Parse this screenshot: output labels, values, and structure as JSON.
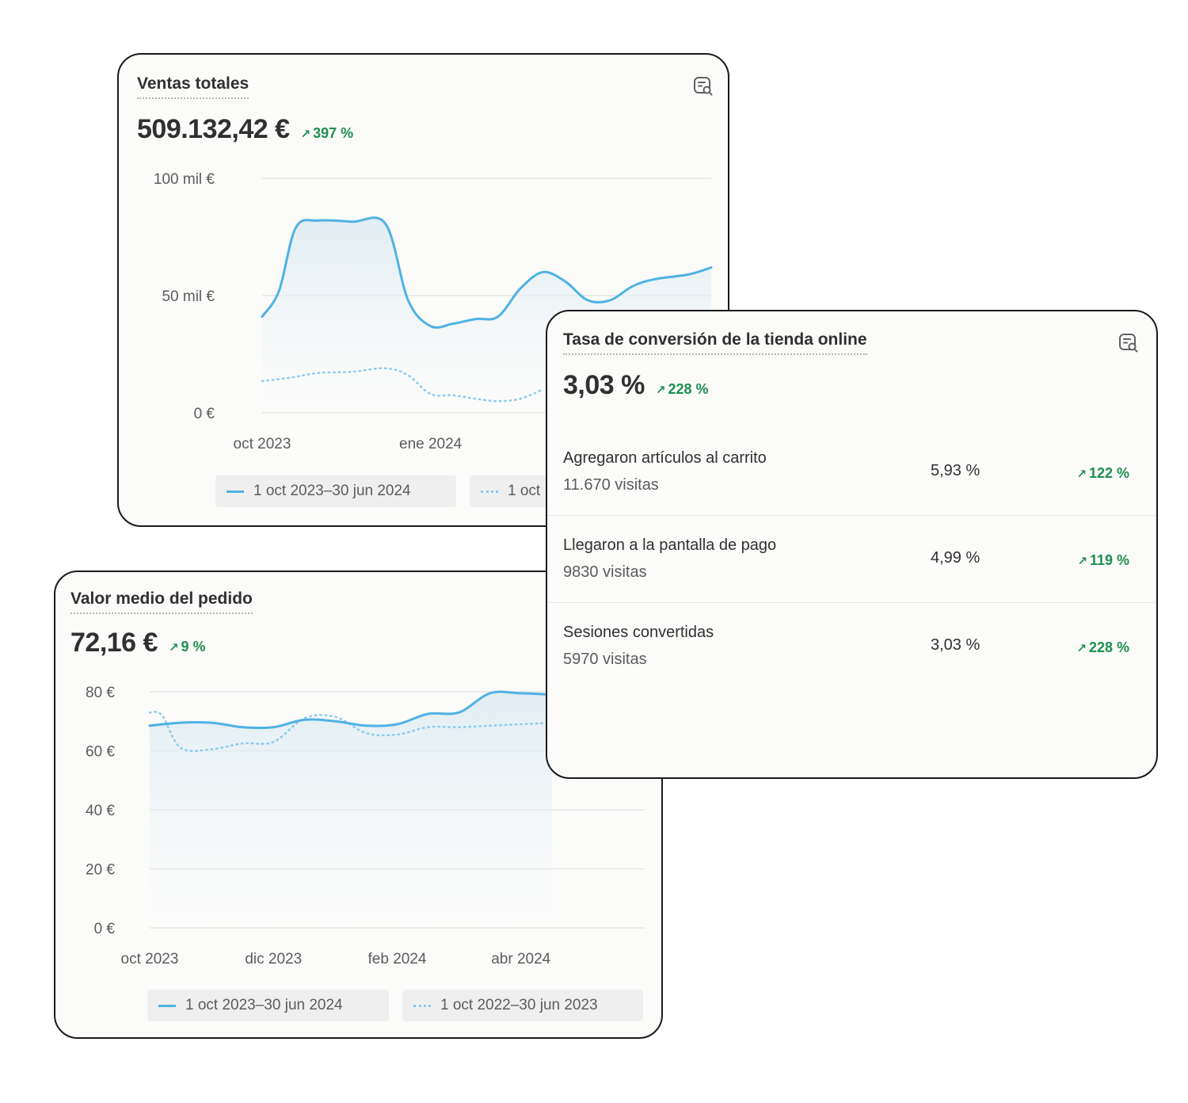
{
  "sales_card": {
    "title": "Ventas totales",
    "value": "509.132,42 €",
    "change": "397 %",
    "change_icon": "arrow-up-right-icon",
    "report_icon": "report-search-icon",
    "legend": [
      "1 oct 2023–30 jun 2024",
      "1 oct"
    ]
  },
  "conversion_card": {
    "title": "Tasa de conversión de la tienda online",
    "value": "3,03 %",
    "change": "228 %",
    "report_icon": "report-search-icon",
    "rows": [
      {
        "label": "Agregaron artículos al carrito",
        "sub": "11.670 visitas",
        "pct": "5,93 %",
        "change": "122 %"
      },
      {
        "label": "Llegaron a la pantalla de pago",
        "sub": "9830 visitas",
        "pct": "4,99 %",
        "change": "119 %"
      },
      {
        "label": "Sesiones convertidas",
        "sub": "5970 visitas",
        "pct": "3,03 %",
        "change": "228 %"
      }
    ]
  },
  "aov_card": {
    "title": "Valor medio del pedido",
    "value": "72,16 €",
    "change": "9 %",
    "legend": [
      "1 oct 2023–30 jun 2024",
      "1 oct 2022–30 jun 2023"
    ]
  },
  "colors": {
    "current": "#4fb2e3",
    "previous": "#8ccbea",
    "positive": "#1f8f50"
  },
  "chart_data": [
    {
      "type": "line",
      "chart": "Ventas totales",
      "yticks": [
        "0 €",
        "50 mil €",
        "100 mil €"
      ],
      "ylim": [
        0,
        100000
      ],
      "xticks": [
        {
          "label": "oct 2023",
          "x": 0
        },
        {
          "label": "ene 2024",
          "x": 3
        }
      ],
      "xlim": [
        0,
        8
      ],
      "series": [
        {
          "name": "1 oct 2023–30 jun 2024",
          "style": "solid",
          "x": [
            0,
            0.3,
            0.6,
            1,
            1.6,
            2.2,
            2.6,
            3,
            3.4,
            3.8,
            4.2,
            4.6,
            5,
            5.4,
            5.8,
            6.2,
            6.6,
            7,
            7.6,
            8
          ],
          "y": [
            41000,
            52000,
            79000,
            82000,
            81500,
            80500,
            48000,
            37000,
            38000,
            40000,
            41000,
            53000,
            60000,
            56000,
            48000,
            48000,
            54000,
            57000,
            59000,
            62000
          ]
        },
        {
          "name": "1 oct",
          "style": "dotted",
          "x": [
            0,
            0.5,
            1,
            1.6,
            2.2,
            2.6,
            3,
            3.4,
            3.8,
            4.2,
            4.6,
            5
          ],
          "y": [
            13500,
            15000,
            17000,
            17500,
            19000,
            16000,
            8000,
            7500,
            6000,
            5000,
            6000,
            10000
          ]
        }
      ]
    },
    {
      "type": "line",
      "chart": "Valor medio del pedido",
      "yticks": [
        "0 €",
        "20 €",
        "40 €",
        "60 €",
        "80 €"
      ],
      "ylim": [
        0,
        80
      ],
      "xticks": [
        {
          "label": "oct 2023",
          "x": 0
        },
        {
          "label": "dic 2023",
          "x": 2
        },
        {
          "label": "feb 2024",
          "x": 4
        },
        {
          "label": "abr 2024",
          "x": 6
        }
      ],
      "xlim": [
        0,
        8
      ],
      "series": [
        {
          "name": "1 oct 2023–30 jun 2024",
          "style": "solid",
          "x": [
            0,
            0.5,
            1,
            1.5,
            2,
            2.5,
            3,
            3.5,
            4,
            4.5,
            5,
            5.5,
            6,
            6.5
          ],
          "y": [
            68.5,
            69.5,
            69.5,
            68,
            68,
            70.5,
            70,
            68.5,
            69,
            72.5,
            73,
            79.5,
            79.5,
            79
          ]
        },
        {
          "name": "1 oct 2022–30 jun 2023",
          "style": "dotted",
          "x": [
            0,
            0.2,
            0.5,
            1,
            1.5,
            2,
            2.5,
            3,
            3.5,
            4,
            4.5,
            5,
            5.5,
            6,
            6.5
          ],
          "y": [
            73,
            72,
            61,
            60.5,
            62.5,
            63,
            71,
            71.5,
            66,
            65.5,
            68,
            68,
            68.5,
            69,
            69.5
          ]
        }
      ]
    }
  ]
}
